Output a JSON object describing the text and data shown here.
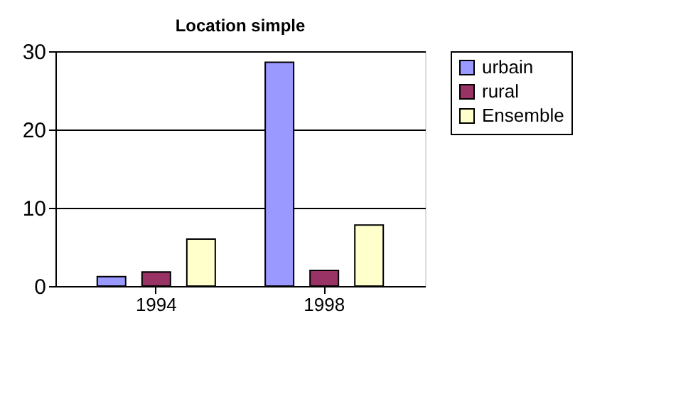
{
  "chart_data": {
    "type": "bar",
    "title": "Location simple",
    "categories": [
      "1994",
      "1998"
    ],
    "series": [
      {
        "name": "urbain",
        "color": "#9999ff",
        "values": [
          1.2,
          28.6
        ]
      },
      {
        "name": "rural",
        "color": "#993366",
        "values": [
          1.8,
          2.0
        ]
      },
      {
        "name": "Ensemble",
        "color": "#ffffcc",
        "values": [
          6.0,
          7.8
        ]
      }
    ],
    "ylim": [
      0,
      30
    ],
    "yticks": [
      0,
      10,
      20,
      30
    ],
    "grid": "y",
    "legend": "right"
  }
}
